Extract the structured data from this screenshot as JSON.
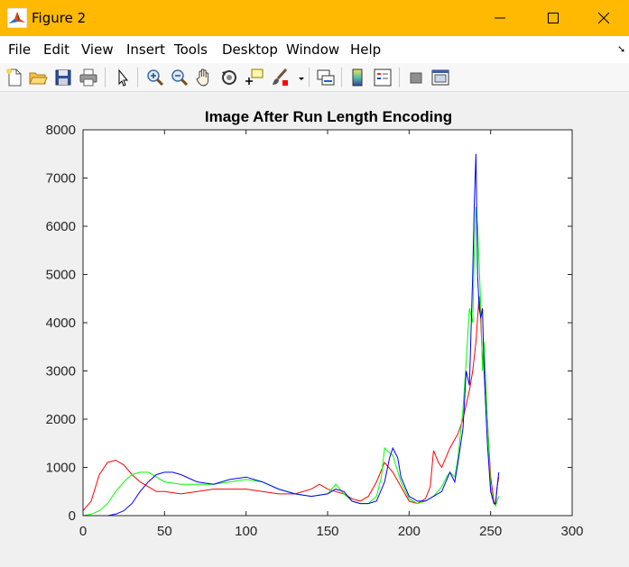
{
  "window": {
    "title": "Figure 2",
    "icon": "matlab-icon",
    "controls": [
      "minimize-icon",
      "maximize-icon",
      "close-icon"
    ],
    "titlebar_color": "#ffb900"
  },
  "menu": {
    "items": [
      "File",
      "Edit",
      "View",
      "Insert",
      "Tools",
      "Desktop",
      "Window",
      "Help"
    ]
  },
  "toolbar": {
    "icons": [
      "new-figure-icon",
      "open-file-icon",
      "save-icon",
      "print-icon",
      "pointer-icon",
      "zoom-in-icon",
      "zoom-out-icon",
      "pan-icon",
      "rotate-3d-icon",
      "data-cursor-icon",
      "brush-icon",
      "brush-dropdown-icon",
      "link-plot-icon",
      "colorbar-icon",
      "legend-icon",
      "hide-plot-tools-icon",
      "show-plot-tools-icon"
    ]
  },
  "chart_data": {
    "type": "line",
    "title": "Image After Run Length Encoding",
    "xlabel": "",
    "ylabel": "",
    "xlim": [
      0,
      300
    ],
    "ylim": [
      0,
      8000
    ],
    "xticks": [
      0,
      50,
      100,
      150,
      200,
      250,
      300
    ],
    "yticks": [
      0,
      1000,
      2000,
      3000,
      4000,
      5000,
      6000,
      7000,
      8000
    ],
    "grid": false,
    "series": [
      {
        "color": "#ff0000",
        "x": [
          0,
          5,
          10,
          15,
          20,
          25,
          30,
          35,
          40,
          45,
          50,
          60,
          70,
          80,
          90,
          100,
          110,
          120,
          130,
          140,
          145,
          150,
          155,
          160,
          165,
          170,
          175,
          180,
          185,
          190,
          195,
          200,
          205,
          210,
          213,
          215,
          218,
          220,
          225,
          230,
          233,
          235,
          237,
          239,
          240,
          241,
          242,
          243,
          244,
          245,
          246,
          248,
          250,
          252,
          253,
          254,
          255
        ],
        "y": [
          100,
          300,
          850,
          1100,
          1150,
          1050,
          850,
          700,
          600,
          500,
          500,
          450,
          500,
          550,
          550,
          550,
          500,
          450,
          450,
          550,
          650,
          550,
          500,
          450,
          350,
          300,
          400,
          700,
          1100,
          900,
          600,
          300,
          250,
          350,
          600,
          1350,
          1100,
          1000,
          1400,
          1700,
          2000,
          2300,
          2600,
          3000,
          3300,
          3600,
          4100,
          4550,
          4000,
          3200,
          3300,
          2000,
          800,
          300,
          200,
          600,
          800
        ]
      },
      {
        "color": "#00ff00",
        "x": [
          0,
          5,
          10,
          15,
          20,
          25,
          30,
          35,
          40,
          45,
          50,
          60,
          70,
          80,
          90,
          100,
          110,
          120,
          130,
          140,
          150,
          155,
          160,
          165,
          170,
          175,
          180,
          183,
          185,
          188,
          190,
          195,
          200,
          205,
          210,
          215,
          220,
          223,
          225,
          228,
          230,
          233,
          235,
          237,
          239,
          240,
          241,
          242,
          243,
          244,
          245,
          246,
          248,
          250,
          252,
          253,
          254,
          255
        ],
        "y": [
          0,
          30,
          100,
          250,
          500,
          700,
          850,
          900,
          900,
          800,
          700,
          650,
          650,
          650,
          700,
          750,
          700,
          550,
          450,
          400,
          450,
          650,
          450,
          300,
          250,
          250,
          400,
          800,
          1400,
          1300,
          1250,
          700,
          350,
          250,
          300,
          400,
          600,
          800,
          900,
          800,
          1200,
          2200,
          3200,
          4300,
          4000,
          5500,
          6400,
          6000,
          5200,
          4300,
          3000,
          3600,
          2000,
          600,
          250,
          200,
          300,
          400
        ]
      },
      {
        "color": "#0000ff",
        "x": [
          0,
          5,
          10,
          15,
          20,
          25,
          30,
          35,
          40,
          45,
          50,
          55,
          60,
          70,
          80,
          90,
          100,
          110,
          120,
          130,
          140,
          150,
          155,
          160,
          165,
          170,
          175,
          180,
          185,
          188,
          190,
          193,
          195,
          200,
          205,
          210,
          215,
          220,
          225,
          228,
          230,
          233,
          235,
          237,
          239,
          240,
          241,
          242,
          243,
          244,
          245,
          246,
          248,
          250,
          252,
          253,
          254,
          255
        ],
        "y": [
          0,
          0,
          0,
          0,
          30,
          100,
          250,
          500,
          700,
          850,
          900,
          900,
          850,
          700,
          650,
          750,
          800,
          700,
          550,
          450,
          400,
          450,
          550,
          500,
          300,
          250,
          250,
          300,
          700,
          1200,
          1400,
          1200,
          800,
          400,
          300,
          300,
          400,
          500,
          900,
          700,
          1100,
          1800,
          3000,
          2700,
          5000,
          6500,
          7500,
          5000,
          4300,
          4100,
          4300,
          3000,
          1500,
          500,
          250,
          250,
          600,
          900
        ]
      }
    ]
  }
}
